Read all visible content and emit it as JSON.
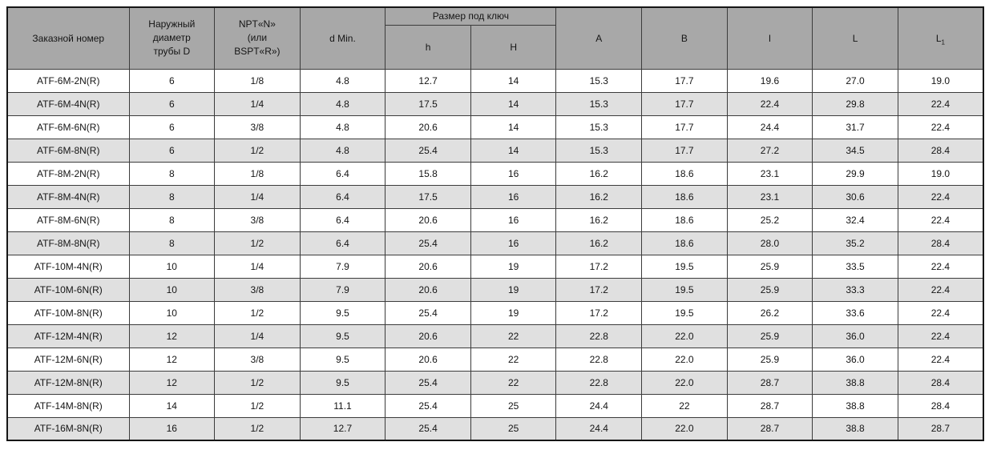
{
  "table": {
    "header": {
      "order_number": "Заказной номер",
      "outer_diameter_lines": [
        "Наружный",
        "диаметр",
        "трубы D"
      ],
      "thread_lines": [
        "NPT«N»",
        "(или",
        "BSPT«R»)"
      ],
      "d_min": "d Min.",
      "wrench_group": "Размер под ключ",
      "h_lower": "h",
      "h_upper": "H",
      "col_a": "A",
      "col_b": "B",
      "col_l_lower": "l",
      "col_l_upper": "L",
      "col_l1_base": "L",
      "col_l1_sub": "1"
    },
    "rows": [
      [
        "ATF-6M-2N(R)",
        "6",
        "1/8",
        "4.8",
        "12.7",
        "14",
        "15.3",
        "17.7",
        "19.6",
        "27.0",
        "19.0"
      ],
      [
        "ATF-6M-4N(R)",
        "6",
        "1/4",
        "4.8",
        "17.5",
        "14",
        "15.3",
        "17.7",
        "22.4",
        "29.8",
        "22.4"
      ],
      [
        "ATF-6M-6N(R)",
        "6",
        "3/8",
        "4.8",
        "20.6",
        "14",
        "15.3",
        "17.7",
        "24.4",
        "31.7",
        "22.4"
      ],
      [
        "ATF-6M-8N(R)",
        "6",
        "1/2",
        "4.8",
        "25.4",
        "14",
        "15.3",
        "17.7",
        "27.2",
        "34.5",
        "28.4"
      ],
      [
        "ATF-8M-2N(R)",
        "8",
        "1/8",
        "6.4",
        "15.8",
        "16",
        "16.2",
        "18.6",
        "23.1",
        "29.9",
        "19.0"
      ],
      [
        "ATF-8M-4N(R)",
        "8",
        "1/4",
        "6.4",
        "17.5",
        "16",
        "16.2",
        "18.6",
        "23.1",
        "30.6",
        "22.4"
      ],
      [
        "ATF-8M-6N(R)",
        "8",
        "3/8",
        "6.4",
        "20.6",
        "16",
        "16.2",
        "18.6",
        "25.2",
        "32.4",
        "22.4"
      ],
      [
        "ATF-8M-8N(R)",
        "8",
        "1/2",
        "6.4",
        "25.4",
        "16",
        "16.2",
        "18.6",
        "28.0",
        "35.2",
        "28.4"
      ],
      [
        "ATF-10M-4N(R)",
        "10",
        "1/4",
        "7.9",
        "20.6",
        "19",
        "17.2",
        "19.5",
        "25.9",
        "33.5",
        "22.4"
      ],
      [
        "ATF-10M-6N(R)",
        "10",
        "3/8",
        "7.9",
        "20.6",
        "19",
        "17.2",
        "19.5",
        "25.9",
        "33.3",
        "22.4"
      ],
      [
        "ATF-10M-8N(R)",
        "10",
        "1/2",
        "9.5",
        "25.4",
        "19",
        "17.2",
        "19.5",
        "26.2",
        "33.6",
        "22.4"
      ],
      [
        "ATF-12M-4N(R)",
        "12",
        "1/4",
        "9.5",
        "20.6",
        "22",
        "22.8",
        "22.0",
        "25.9",
        "36.0",
        "22.4"
      ],
      [
        "ATF-12M-6N(R)",
        "12",
        "3/8",
        "9.5",
        "20.6",
        "22",
        "22.8",
        "22.0",
        "25.9",
        "36.0",
        "22.4"
      ],
      [
        "ATF-12M-8N(R)",
        "12",
        "1/2",
        "9.5",
        "25.4",
        "22",
        "22.8",
        "22.0",
        "28.7",
        "38.8",
        "28.4"
      ],
      [
        "ATF-14M-8N(R)",
        "14",
        "1/2",
        "11.1",
        "25.4",
        "25",
        "24.4",
        "22",
        "28.7",
        "38.8",
        "28.4"
      ],
      [
        "ATF-16M-8N(R)",
        "16",
        "1/2",
        "12.7",
        "25.4",
        "25",
        "24.4",
        "22.0",
        "28.7",
        "38.8",
        "28.7"
      ]
    ],
    "colors": {
      "header_bg": "#a8a8a8",
      "stripe_bg": "#e0e0e0",
      "border": "#3c3c3c"
    }
  }
}
